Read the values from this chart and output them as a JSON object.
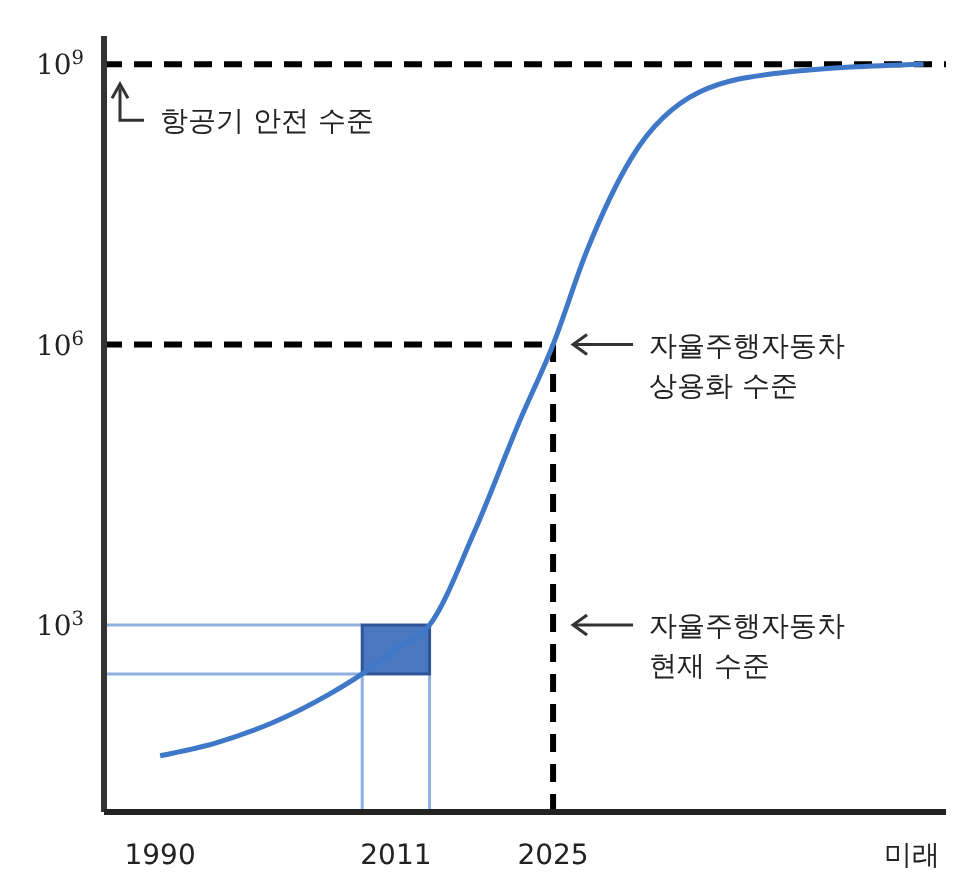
{
  "chart_data": {
    "type": "line",
    "log": "y",
    "x": [
      1990,
      1995,
      2000,
      2005,
      2008,
      2011,
      2014,
      2018,
      2022,
      2025,
      2028,
      2032,
      2038,
      2045,
      2058
    ],
    "series": [
      {
        "color": "#3f78c8",
        "values": [
          40,
          55,
          90,
          180,
          300,
          550,
          1000,
          10000,
          150000,
          1000000,
          10000000,
          100000000,
          500000000,
          800000000,
          1000000000
        ]
      }
    ],
    "xlim": [
      1985,
      2060
    ],
    "xticks": [
      1990,
      2011,
      2025,
      {
        "value": 2057,
        "label": "미래"
      }
    ],
    "ylim": [
      10,
      2000000000
    ],
    "yticks": [
      {
        "value": 1000,
        "label": "10$^{3}$"
      },
      {
        "value": 1000000,
        "label": "10$^{6}$"
      },
      {
        "value": 1000000000,
        "label": "10$^{9}$"
      }
    ],
    "grid": false,
    "marker": "none",
    "line_style": "solid",
    "ref_lines": [
      {
        "axis": "y",
        "value": 1000000000,
        "color": "#000000",
        "line_style": "dashed"
      },
      {
        "axis": "y",
        "value": 1000000,
        "color": "#000000",
        "line_style": "dashed"
      },
      {
        "axis": "x",
        "value": 2025,
        "color": "#000000",
        "line_style": "dashed"
      }
    ],
    "annotations": [
      "항공기 안전 수준",
      "자율주행자동차\n상용화 수준",
      "자율주행자동차\n현재 수준"
    ]
  }
}
